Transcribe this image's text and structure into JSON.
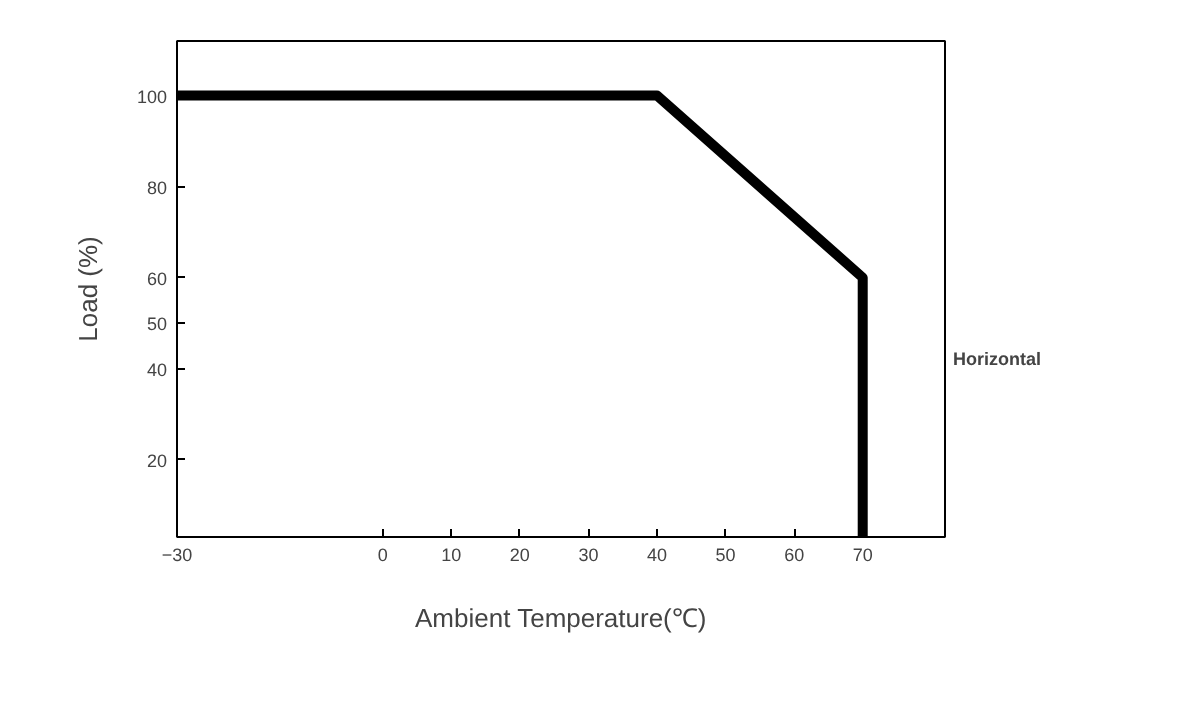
{
  "chart_data": {
    "type": "line",
    "xlabel": "Ambient Temperature(℃)",
    "ylabel": "Load (%)",
    "x": [
      -30,
      40,
      70,
      70
    ],
    "series": [
      {
        "color": "#000000",
        "values": [
          100,
          100,
          60,
          3
        ]
      }
    ],
    "xlim": [
      -30,
      82
    ],
    "ylim": [
      3,
      112
    ],
    "xticks": [
      -30,
      0,
      10,
      20,
      30,
      40,
      50,
      60,
      70
    ],
    "yticks": [
      20,
      40,
      50,
      60,
      80,
      100
    ],
    "annotations": [
      "Horizontal"
    ],
    "grid": false,
    "marker": "none",
    "line_style": "solid"
  }
}
